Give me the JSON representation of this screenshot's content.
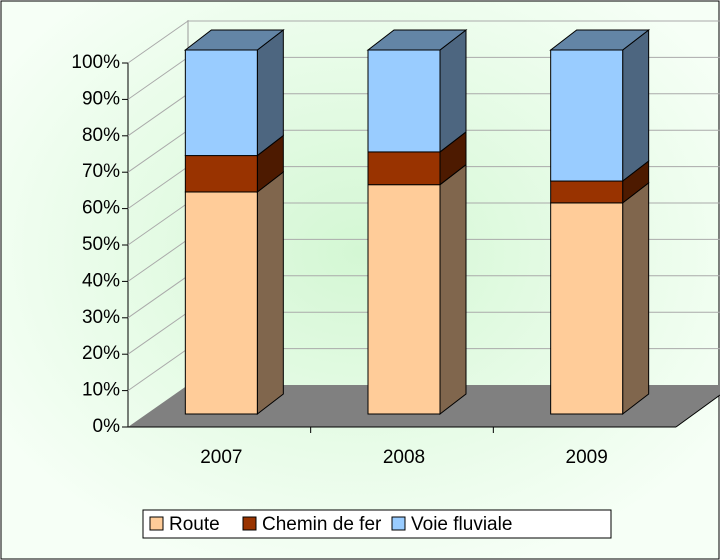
{
  "chart_data": {
    "type": "bar",
    "stacked": true,
    "categories": [
      "2007",
      "2008",
      "2009"
    ],
    "series": [
      {
        "name": "Route",
        "color": "#ffcc99",
        "values": [
          61,
          63,
          58
        ]
      },
      {
        "name": "Chemin de fer",
        "color": "#993300",
        "values": [
          10,
          9,
          6
        ]
      },
      {
        "name": "Voie fluviale",
        "color": "#99ccff",
        "values": [
          29,
          28,
          36
        ]
      }
    ],
    "ylim": [
      0,
      100
    ],
    "yticks": [
      {
        "value": 0,
        "label": "0%"
      },
      {
        "value": 10,
        "label": "10%"
      },
      {
        "value": 20,
        "label": "20%"
      },
      {
        "value": 30,
        "label": "30%"
      },
      {
        "value": 40,
        "label": "40%"
      },
      {
        "value": 50,
        "label": "50%"
      },
      {
        "value": 60,
        "label": "60%"
      },
      {
        "value": 70,
        "label": "70%"
      },
      {
        "value": 80,
        "label": "80%"
      },
      {
        "value": 90,
        "label": "90%"
      },
      {
        "value": 100,
        "label": "100%"
      }
    ],
    "grid": true,
    "legend": "bottom"
  }
}
